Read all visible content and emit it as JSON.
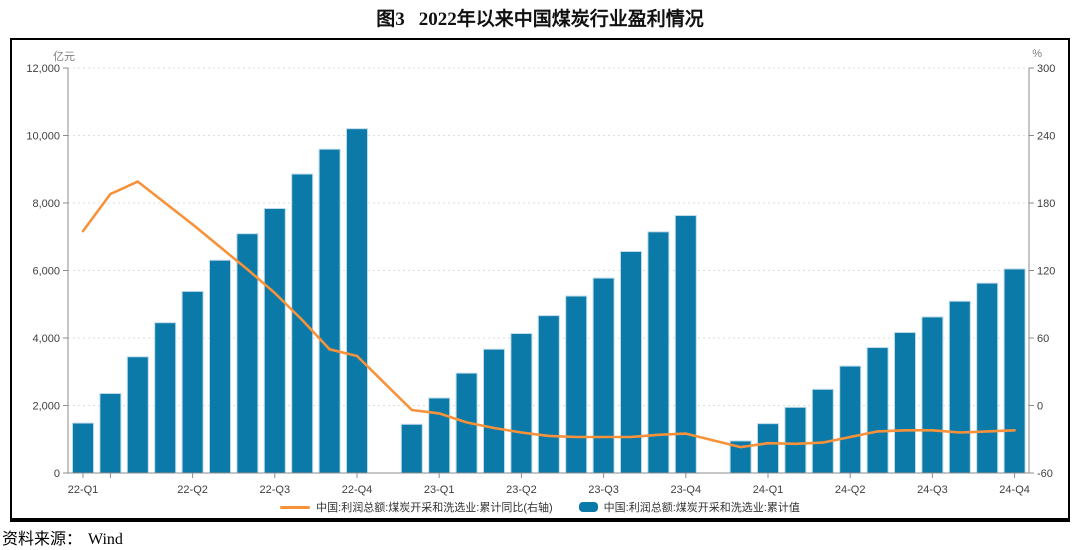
{
  "figure": {
    "number": "图3",
    "title": "2022年以来中国煤炭行业盈利情况"
  },
  "footer": {
    "source_label": "资料来源：",
    "source_value": "Wind"
  },
  "style": {
    "bar_color": "#0c7aa8",
    "bar_edge_color": "#bfdbe9",
    "line_color": "#f7923a",
    "grid_color": "#dcdcdc",
    "axis_color": "#8c8c8c",
    "label_color": "#404040",
    "unit_color": "#7f7f7f",
    "frame_color": "#000000"
  },
  "chart_data": {
    "type": "combo-bar-line",
    "title": "图3 2022年以来中国煤炭行业盈利情况",
    "x": [
      "2022-02",
      "2022-03",
      "2022-04",
      "2022-05",
      "2022-06",
      "2022-07",
      "2022-08",
      "2022-09",
      "2022-10",
      "2022-11",
      "2022-12",
      "2023-02",
      "2023-03",
      "2023-04",
      "2023-05",
      "2023-06",
      "2023-07",
      "2023-08",
      "2023-09",
      "2023-10",
      "2023-11",
      "2023-12",
      "2024-02",
      "2024-03",
      "2024-04",
      "2024-05",
      "2024-06",
      "2024-07",
      "2024-08",
      "2024-09",
      "2024-10",
      "2024-11",
      "2024-12"
    ],
    "month_index": [
      0,
      1,
      2,
      3,
      4,
      5,
      6,
      7,
      8,
      9,
      10,
      12,
      13,
      14,
      15,
      16,
      17,
      18,
      19,
      20,
      21,
      22,
      24,
      25,
      26,
      27,
      28,
      29,
      30,
      31,
      32,
      33,
      34
    ],
    "series": [
      {
        "name": "中国:利润总额:煤炭开采和洗选业:累计同比(右轴)",
        "type": "line",
        "axis": "right",
        "color": "#f7923a",
        "values": [
          155,
          188,
          199,
          180,
          161,
          141,
          121,
          100,
          76,
          50,
          44,
          -4,
          -7,
          -15,
          -20,
          -24,
          -27,
          -28,
          -28,
          -28,
          -26,
          -25,
          -37,
          -33.5,
          -34,
          -33,
          -28,
          -23,
          -22,
          -22,
          -24,
          -23,
          -22
        ]
      },
      {
        "name": "中国:利润总额:煤炭开采和洗选业:累计值",
        "type": "bar",
        "axis": "left",
        "color": "#0c7aa8",
        "values": [
          1480,
          2356,
          3443,
          4453,
          5380,
          6304,
          7090,
          7837,
          8858,
          9594,
          10202,
          1443,
          2222,
          2959,
          3668,
          4133,
          4663,
          5243,
          5775,
          6563,
          7146,
          7629,
          950,
          1463,
          1946,
          2479,
          3168,
          3717,
          4163,
          4624,
          5089,
          5626,
          6046
        ]
      }
    ],
    "left_axis": {
      "unit": "亿元",
      "min": 0,
      "max": 12000,
      "tick_values": [
        0,
        2000,
        4000,
        6000,
        8000,
        10000,
        12000
      ],
      "tick_labels": [
        "0",
        "2,000",
        "4,000",
        "6,000",
        "8,000",
        "10,000",
        "12,000"
      ]
    },
    "right_axis": {
      "unit": "%",
      "min": -60,
      "max": 300,
      "tick_values": [
        -60,
        0,
        60,
        120,
        180,
        240,
        300
      ],
      "tick_labels": [
        "-60",
        "0",
        "60",
        "120",
        "180",
        "240",
        "300"
      ]
    },
    "x_tick_labels": [
      {
        "label": "22-Q1",
        "mi": 0
      },
      {
        "label": "22-Q2",
        "mi": 4
      },
      {
        "label": "22-Q3",
        "mi": 7
      },
      {
        "label": "22-Q4",
        "mi": 10
      },
      {
        "label": "23-Q1",
        "mi": 13
      },
      {
        "label": "23-Q2",
        "mi": 16
      },
      {
        "label": "23-Q3",
        "mi": 19
      },
      {
        "label": "23-Q4",
        "mi": 22
      },
      {
        "label": "24-Q1",
        "mi": 25
      },
      {
        "label": "24-Q2",
        "mi": 28
      },
      {
        "label": "24-Q3",
        "mi": 31
      },
      {
        "label": "24-Q4",
        "mi": 34
      }
    ],
    "extra_x_ticks": [
      1
    ],
    "grid": true,
    "legend_position": "bottom"
  }
}
